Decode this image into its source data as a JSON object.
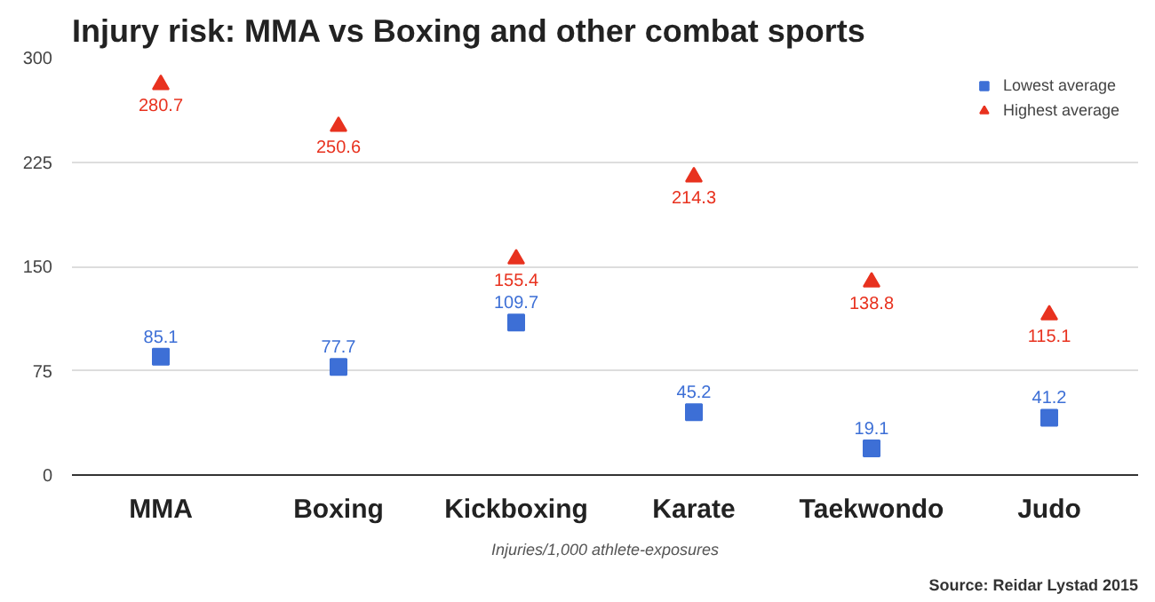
{
  "chart_data": {
    "type": "scatter",
    "title": "Injury risk: MMA vs Boxing and other combat sports",
    "xlabel": "Injuries/1,000 athlete-exposures",
    "categories": [
      "MMA",
      "Boxing",
      "Kickboxing",
      "Karate",
      "Taekwondo",
      "Judo"
    ],
    "series": [
      {
        "name": "Lowest average",
        "color": "#3d6fd6",
        "marker": "square",
        "values": [
          85.1,
          77.7,
          109.7,
          45.2,
          19.1,
          41.2
        ]
      },
      {
        "name": "Highest average",
        "color": "#e8321f",
        "marker": "triangle",
        "values": [
          280.7,
          250.6,
          155.4,
          214.3,
          138.8,
          115.1
        ]
      }
    ],
    "ylim": [
      0,
      300
    ],
    "yticks": [
      0,
      75,
      150,
      225,
      300
    ],
    "grid": "y",
    "legend": "top right",
    "data_labels": true,
    "annotations": [
      "Source: Reidar Lystad 2015"
    ]
  }
}
